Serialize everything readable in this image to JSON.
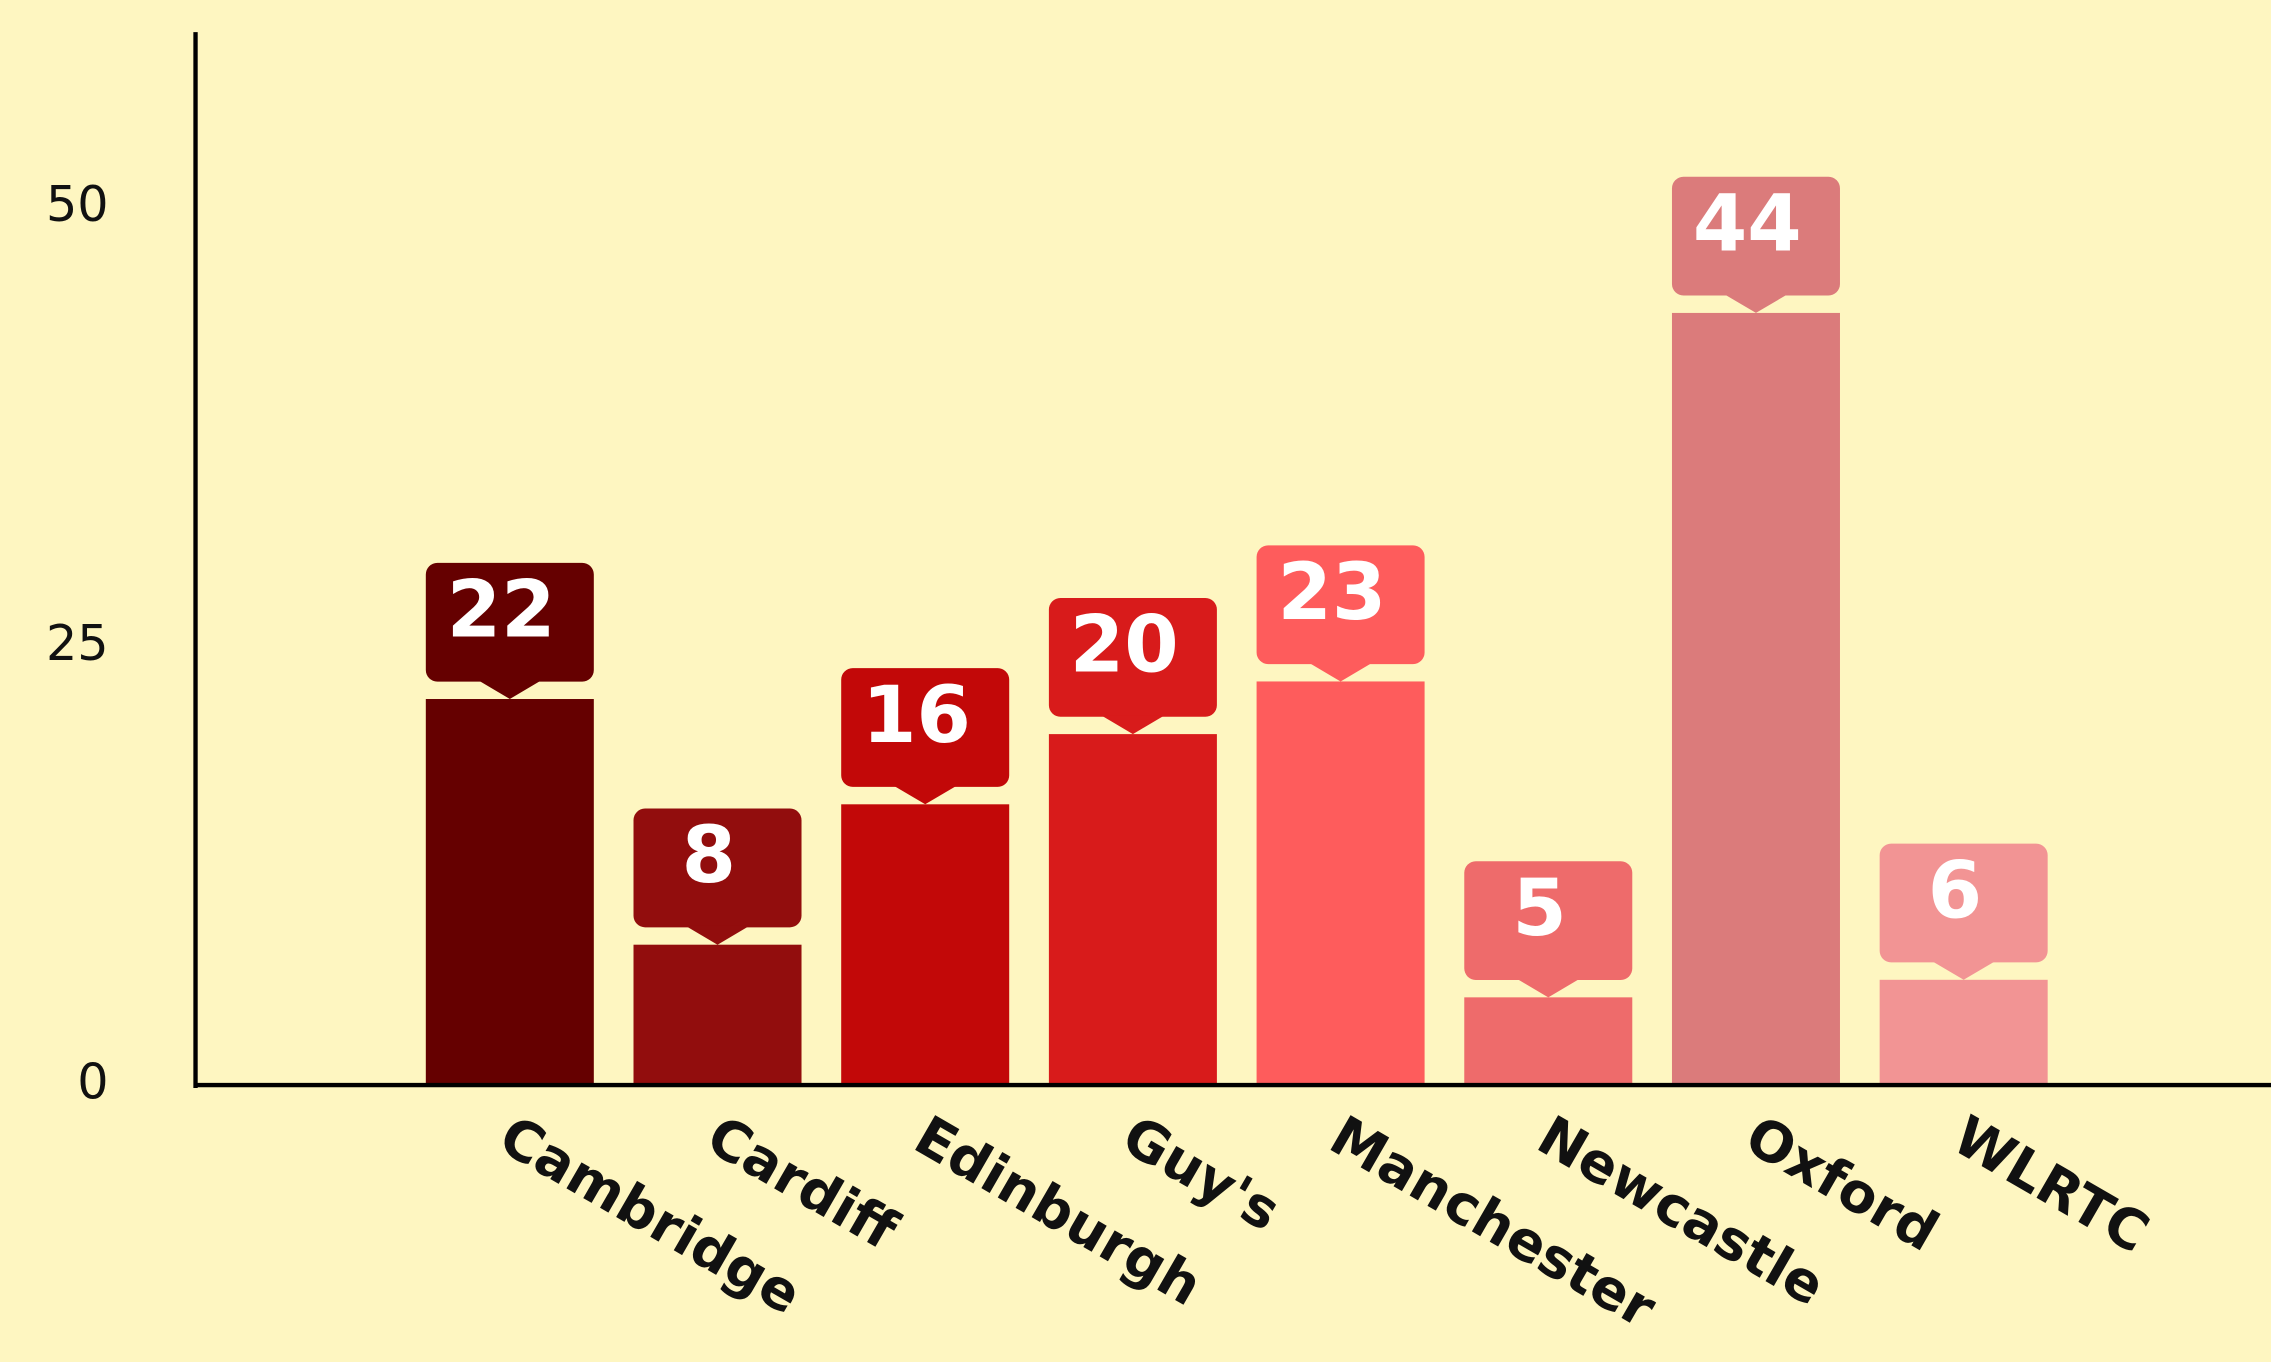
{
  "chart_data": {
    "type": "bar",
    "categories": [
      "Cambridge",
      "Cardiff",
      "Edinburgh",
      "Guy's",
      "Manchester",
      "Newcastle",
      "Oxford",
      "WLRTC"
    ],
    "values": [
      22,
      8,
      16,
      20,
      23,
      5,
      44,
      6
    ],
    "colors": [
      "#650000",
      "#920d0d",
      "#c20808",
      "#d81b1b",
      "#fe5c5c",
      "#ee6b6b",
      "#db7b7b",
      "#f29494"
    ],
    "ylim": [
      0,
      60
    ],
    "yticks": [
      0,
      25,
      50
    ],
    "grid": false
  }
}
